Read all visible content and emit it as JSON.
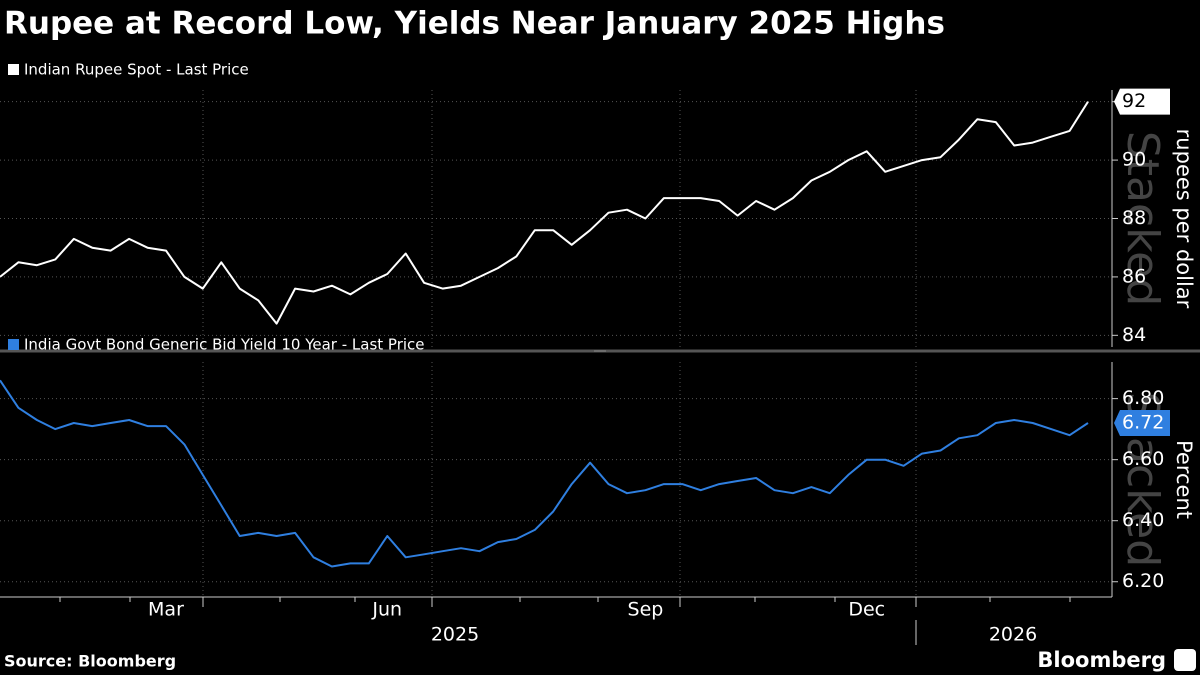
{
  "title": "Rupee at Record Low, Yields Near January 2025 Highs",
  "source": "Source: Bloomberg",
  "logo": "Bloomberg",
  "chart_data": [
    {
      "type": "line",
      "series": [
        {
          "name": "Indian Rupee Spot - Last Price",
          "color": "#ffffff",
          "values": [
            86.0,
            86.5,
            86.4,
            86.6,
            87.3,
            87.0,
            86.9,
            87.3,
            87.0,
            86.9,
            86.0,
            85.6,
            86.5,
            85.6,
            85.2,
            84.4,
            85.6,
            85.5,
            85.7,
            85.4,
            85.8,
            86.1,
            86.8,
            85.8,
            85.6,
            85.7,
            86.0,
            86.3,
            86.7,
            87.6,
            87.6,
            87.1,
            87.6,
            88.2,
            88.3,
            88.0,
            88.7,
            88.7,
            88.7,
            88.6,
            88.1,
            88.6,
            88.3,
            88.7,
            89.3,
            89.6,
            90.0,
            90.3,
            89.6,
            89.8,
            90.0,
            90.1,
            90.7,
            91.4,
            91.3,
            90.5,
            90.6,
            90.8,
            91.0,
            92.0
          ]
        }
      ],
      "ylim": [
        83.6,
        92.4
      ],
      "yticks": [
        84,
        86,
        88,
        90,
        92
      ],
      "y_label": "rupees per dollar",
      "watermark": "Stacked",
      "grid": true
    },
    {
      "type": "line",
      "categories": [
        null,
        null,
        null,
        null,
        null,
        null,
        null,
        null,
        null,
        "Mar",
        null,
        null,
        null,
        null,
        null,
        null,
        null,
        null,
        null,
        null,
        null,
        "Jun",
        null,
        null,
        null,
        null,
        null,
        null,
        null,
        null,
        null,
        null,
        null,
        null,
        null,
        "Sep",
        null,
        null,
        null,
        null,
        null,
        null,
        null,
        null,
        null,
        null,
        null,
        "Dec",
        null,
        null,
        null,
        null,
        null,
        null,
        null,
        null,
        null,
        null,
        null,
        null
      ],
      "years": [
        "2025",
        "2026"
      ],
      "series": [
        {
          "name": "India Govt Bond Generic Bid Yield 10 Year - Last Price",
          "color": "#2f7fe0",
          "values": [
            6.86,
            6.77,
            6.73,
            6.7,
            6.72,
            6.71,
            6.72,
            6.73,
            6.71,
            6.71,
            6.65,
            6.55,
            6.45,
            6.35,
            6.36,
            6.35,
            6.36,
            6.28,
            6.25,
            6.26,
            6.26,
            6.35,
            6.28,
            6.29,
            6.3,
            6.31,
            6.3,
            6.33,
            6.34,
            6.37,
            6.43,
            6.52,
            6.59,
            6.52,
            6.49,
            6.5,
            6.52,
            6.52,
            6.5,
            6.52,
            6.53,
            6.54,
            6.5,
            6.49,
            6.51,
            6.49,
            6.55,
            6.6,
            6.6,
            6.58,
            6.62,
            6.63,
            6.67,
            6.68,
            6.72,
            6.73,
            6.72,
            6.7,
            6.68,
            6.72
          ]
        }
      ],
      "ylim": [
        6.15,
        6.92
      ],
      "yticks": [
        {
          "value": 6.2,
          "label": "6.20"
        },
        {
          "value": 6.4,
          "label": "6.40"
        },
        {
          "value": 6.6,
          "label": "6.60"
        },
        {
          "value": 6.8,
          "label": "6.80"
        }
      ],
      "y_label": "Percent",
      "watermark": "Stacked",
      "grid": true
    }
  ]
}
